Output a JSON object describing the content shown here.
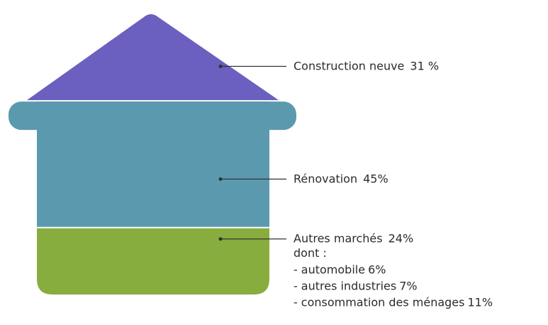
{
  "chart_data": {
    "type": "house",
    "categories": [
      "Construction neuve",
      "Rénovation",
      "Autres marchés"
    ],
    "values": [
      31,
      45,
      24
    ],
    "value_labels": [
      "31 %",
      "45%",
      "24%"
    ],
    "colors": [
      "#6b5fbf",
      "#5b9aae",
      "#87ad3e"
    ],
    "breakdown": {
      "title": "dont :",
      "marker": "-",
      "categories": [
        "automobile",
        "autres industries",
        "consommation des ménages"
      ],
      "values": [
        6,
        7,
        11
      ],
      "value_labels": [
        "6%",
        "7%",
        "11%"
      ]
    }
  }
}
